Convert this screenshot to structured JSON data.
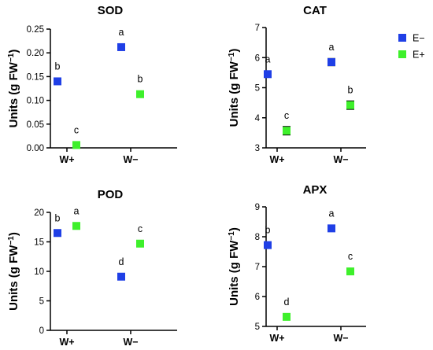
{
  "chart_data": [
    {
      "type": "scatter",
      "title": "SOD",
      "ylabel": "Units (g FW",
      "ylabel_sup": "−1",
      "ylabel_end": ")",
      "categories": [
        "W+",
        "W−"
      ],
      "ylim": [
        0,
        0.25
      ],
      "yticks": [
        "0.00",
        "0.05",
        "0.10",
        "0.15",
        "0.20",
        "0.25"
      ],
      "ytick_values": [
        0,
        0.05,
        0.1,
        0.15,
        0.2,
        0.25
      ],
      "series": [
        {
          "name": "E−",
          "values": [
            0.14,
            0.212
          ],
          "errors": [
            0.003,
            0.005
          ],
          "letters": [
            "b",
            "a"
          ]
        },
        {
          "name": "E+",
          "values": [
            0.006,
            0.113
          ],
          "errors": [
            0.004,
            0.005
          ],
          "letters": [
            "c",
            "b"
          ]
        }
      ]
    },
    {
      "type": "scatter",
      "title": "CAT",
      "ylabel": "Units (g FW",
      "ylabel_sup": "−1",
      "ylabel_end": ")",
      "categories": [
        "W+",
        "W−"
      ],
      "ylim": [
        3,
        7
      ],
      "yticks": [
        "3",
        "4",
        "5",
        "6",
        "7"
      ],
      "ytick_values": [
        3,
        4,
        5,
        6,
        7
      ],
      "series": [
        {
          "name": "E−",
          "values": [
            5.45,
            5.85
          ],
          "errors": [
            0.05,
            0.12
          ],
          "letters": [
            "a",
            "a"
          ]
        },
        {
          "name": "E+",
          "values": [
            3.57,
            4.42
          ],
          "errors": [
            0.14,
            0.14
          ],
          "letters": [
            "c",
            "b"
          ]
        }
      ]
    },
    {
      "type": "scatter",
      "title": "POD",
      "ylabel": "Units (g FW",
      "ylabel_sup": "−1",
      "ylabel_end": ")",
      "categories": [
        "W+",
        "W−"
      ],
      "ylim": [
        0,
        20
      ],
      "yticks": [
        "0",
        "5",
        "10",
        "15",
        "20"
      ],
      "ytick_values": [
        0,
        5,
        10,
        15,
        20
      ],
      "series": [
        {
          "name": "E−",
          "values": [
            16.5,
            9.1
          ],
          "errors": [
            0.3,
            0.4
          ],
          "letters": [
            "b",
            "d"
          ]
        },
        {
          "name": "E+",
          "values": [
            17.7,
            14.7
          ],
          "errors": [
            0.5,
            0.5
          ],
          "letters": [
            "a",
            "c"
          ]
        }
      ]
    },
    {
      "type": "scatter",
      "title": "APX",
      "ylabel": "Units (g FW",
      "ylabel_sup": "−1",
      "ylabel_end": ")",
      "categories": [
        "W+",
        "W−"
      ],
      "ylim": [
        5,
        9
      ],
      "yticks": [
        "5",
        "6",
        "7",
        "8",
        "9"
      ],
      "ytick_values": [
        5,
        6,
        7,
        8,
        9
      ],
      "series": [
        {
          "name": "E−",
          "values": [
            7.72,
            8.28
          ],
          "errors": [
            0.04,
            0.06
          ],
          "letters": [
            "b",
            "a"
          ]
        },
        {
          "name": "E+",
          "values": [
            5.32,
            6.84
          ],
          "errors": [
            0.08,
            0.06
          ],
          "letters": [
            "d",
            "c"
          ]
        }
      ]
    }
  ],
  "legend": {
    "entries": [
      {
        "label": "E−",
        "color": "#1f3fe6"
      },
      {
        "label": "E+",
        "color": "#3ef02b"
      }
    ],
    "placement": "top-right"
  },
  "colors": {
    "E−": "#1f3fe6",
    "E+": "#3ef02b",
    "axis": "#000000"
  }
}
